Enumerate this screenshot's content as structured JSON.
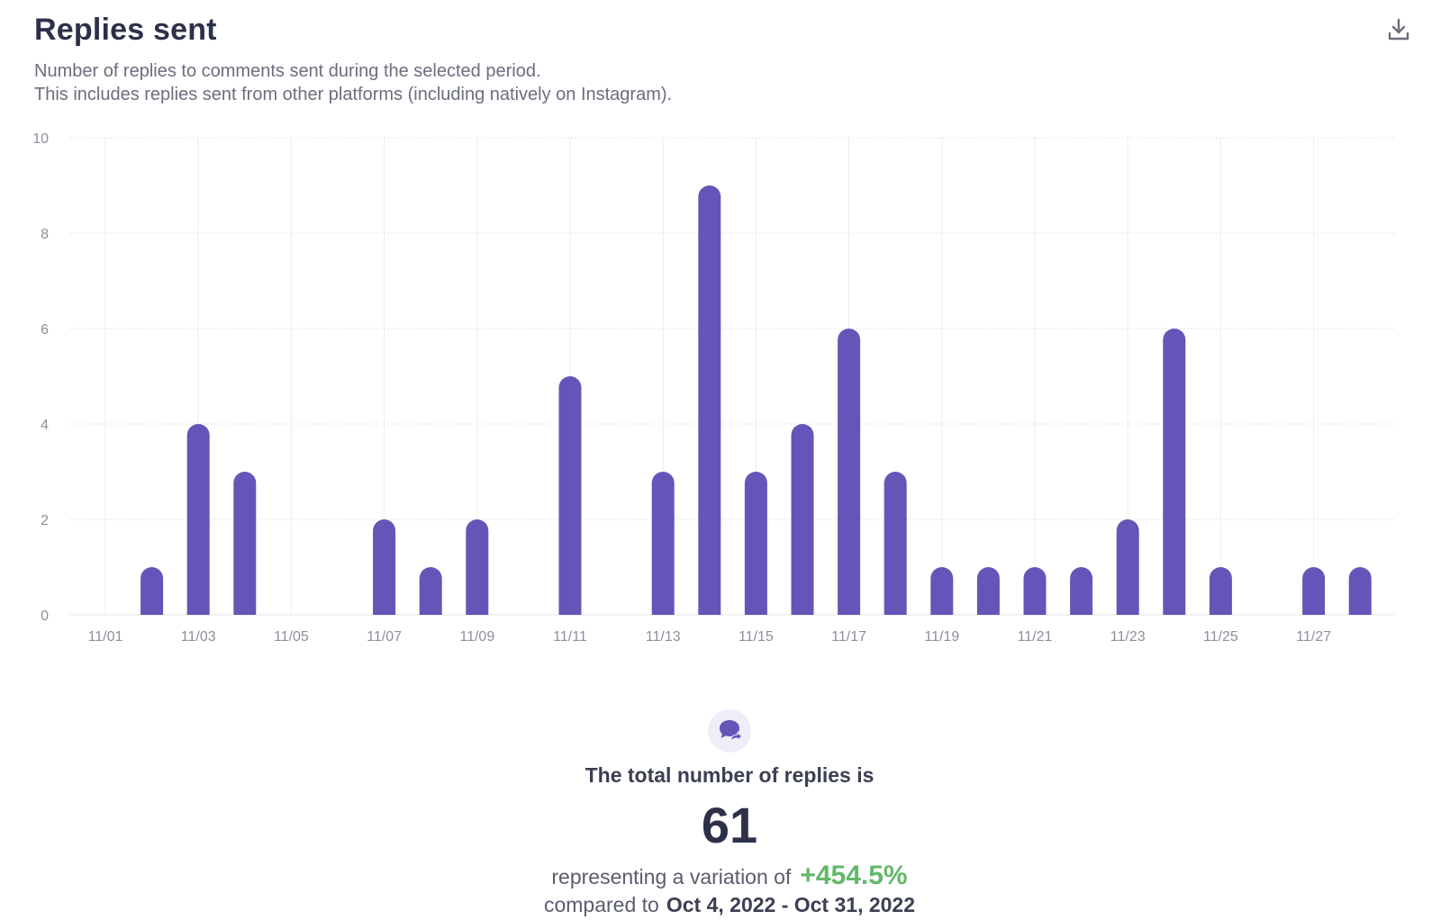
{
  "header": {
    "title": "Replies sent",
    "subtitle_line1": "Number of replies to comments sent during the selected period.",
    "subtitle_line2": "This includes replies sent from other platforms (including natively on Instagram)."
  },
  "icons": {
    "download": "download-icon",
    "replies": "reply-bubble-icon"
  },
  "colors": {
    "bar": "#6654b8",
    "positive": "#63b86a",
    "title": "#2c3149"
  },
  "chart_data": {
    "type": "bar",
    "title": "Replies sent",
    "xlabel": "",
    "ylabel": "",
    "ylim": [
      0,
      10
    ],
    "yticks": [
      0,
      2,
      4,
      6,
      8,
      10
    ],
    "categories": [
      "11/01",
      "11/02",
      "11/03",
      "11/04",
      "11/05",
      "11/06",
      "11/07",
      "11/08",
      "11/09",
      "11/10",
      "11/11",
      "11/12",
      "11/13",
      "11/14",
      "11/15",
      "11/16",
      "11/17",
      "11/18",
      "11/19",
      "11/20",
      "11/21",
      "11/22",
      "11/23",
      "11/24",
      "11/25",
      "11/26",
      "11/27",
      "11/28"
    ],
    "tick_labels": [
      "11/01",
      "11/03",
      "11/05",
      "11/07",
      "11/09",
      "11/11",
      "11/13",
      "11/15",
      "11/17",
      "11/19",
      "11/21",
      "11/23",
      "11/25",
      "11/27"
    ],
    "series": [
      {
        "name": "Replies sent",
        "values": [
          0,
          1,
          4,
          3,
          0,
          0,
          2,
          1,
          2,
          0,
          5,
          0,
          3,
          9,
          3,
          4,
          6,
          3,
          1,
          1,
          1,
          1,
          2,
          6,
          1,
          0,
          1,
          1
        ]
      }
    ],
    "grid": true
  },
  "summary": {
    "total_label": "The total number of replies is",
    "total_value": "61",
    "variation_text": "representing a variation of",
    "variation_value": "+454.5%",
    "compare_text": "compared to",
    "compare_range": "Oct 4, 2022 - Oct 31, 2022"
  }
}
